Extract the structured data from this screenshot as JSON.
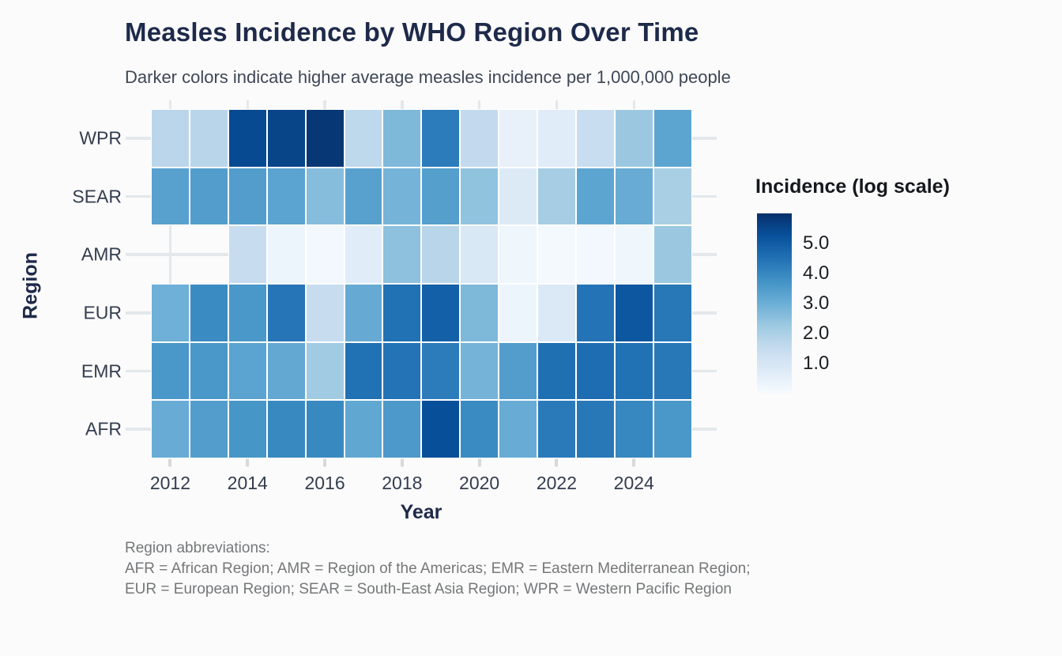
{
  "title": "Measles Incidence by WHO Region Over Time",
  "subtitle": "Darker colors indicate higher average measles incidence per 1,000,000 people",
  "footer": {
    "lines": [
      "Region abbreviations:",
      "AFR = African Region; AMR = Region of the Americas; EMR = Eastern Mediterranean Region;",
      "EUR = European Region; SEAR = South-East Asia Region; WPR = Western Pacific Region"
    ]
  },
  "colors": {
    "background": "#fbfbfb",
    "title_text": "#1e2a4a",
    "subtitle_text": "#3e4756",
    "axis_text": "#333d4f",
    "gridline": "#e3e8ec",
    "tile_border": "#ffffff",
    "footer_text": "#757779"
  },
  "chart_data": {
    "type": "heatmap",
    "title": "Measles Incidence by WHO Region Over Time",
    "subtitle": "Darker colors indicate higher average measles incidence per 1,000,000 people",
    "xlabel": "Year",
    "ylabel": "Region",
    "x": [
      2012,
      2013,
      2014,
      2015,
      2016,
      2017,
      2018,
      2019,
      2020,
      2021,
      2022,
      2023,
      2024,
      2025
    ],
    "x_tick_labels": [
      "2012",
      "2014",
      "2016",
      "2018",
      "2020",
      "2022",
      "2024"
    ],
    "x_ticks": [
      2012,
      2014,
      2016,
      2018,
      2020,
      2022,
      2024
    ],
    "rows_top_to_bottom": [
      "WPR",
      "SEAR",
      "AMR",
      "EUR",
      "EMR",
      "AFR"
    ],
    "value_meaning": "log-scale average measles incidence per 1,000,000 people (null = no tile shown)",
    "value_range": [
      0,
      6
    ],
    "grid": "light horizontal lines at row centers and vertical lines at labeled year ticks",
    "series": [
      {
        "name": "WPR",
        "values": [
          1.7,
          1.75,
          5.4,
          5.55,
          5.85,
          1.65,
          2.7,
          4.25,
          1.55,
          0.45,
          0.7,
          1.4,
          2.3,
          3.25
        ]
      },
      {
        "name": "SEAR",
        "values": [
          3.35,
          3.45,
          3.45,
          3.3,
          2.6,
          3.35,
          2.85,
          3.4,
          2.45,
          0.8,
          2.1,
          3.25,
          3.05,
          2.05
        ]
      },
      {
        "name": "AMR",
        "values": [
          null,
          null,
          1.45,
          0.3,
          0.15,
          0.7,
          2.5,
          1.75,
          0.9,
          0.25,
          0.1,
          0.15,
          0.25,
          2.3
        ]
      },
      {
        "name": "EUR",
        "values": [
          2.95,
          3.9,
          3.6,
          4.4,
          1.45,
          3.1,
          4.5,
          4.9,
          2.7,
          0.3,
          0.85,
          4.45,
          5.1,
          4.35
        ]
      },
      {
        "name": "EMR",
        "values": [
          3.6,
          3.6,
          3.3,
          3.15,
          2.2,
          4.5,
          4.45,
          4.25,
          2.85,
          3.45,
          4.55,
          4.6,
          4.5,
          4.35
        ]
      },
      {
        "name": "AFR",
        "values": [
          3.05,
          3.45,
          3.65,
          3.95,
          3.95,
          3.2,
          3.55,
          5.3,
          3.9,
          3.05,
          4.3,
          4.35,
          4.0,
          3.6
        ]
      }
    ],
    "legend": {
      "title": "Incidence (log scale)",
      "position": "right",
      "tick_values": [
        5.0,
        4.0,
        3.0,
        2.0,
        1.0
      ],
      "tick_labels": [
        "5.0",
        "4.0",
        "3.0",
        "2.0",
        "1.0"
      ],
      "bar_top_value": 6.0,
      "bar_bottom_value": 0.0
    },
    "palette": {
      "name": "Blues",
      "stops": [
        "#f7fbff",
        "#deebf7",
        "#c6dbef",
        "#9ecae1",
        "#6baed6",
        "#4292c6",
        "#2171b5",
        "#08519c",
        "#08306b"
      ]
    }
  }
}
